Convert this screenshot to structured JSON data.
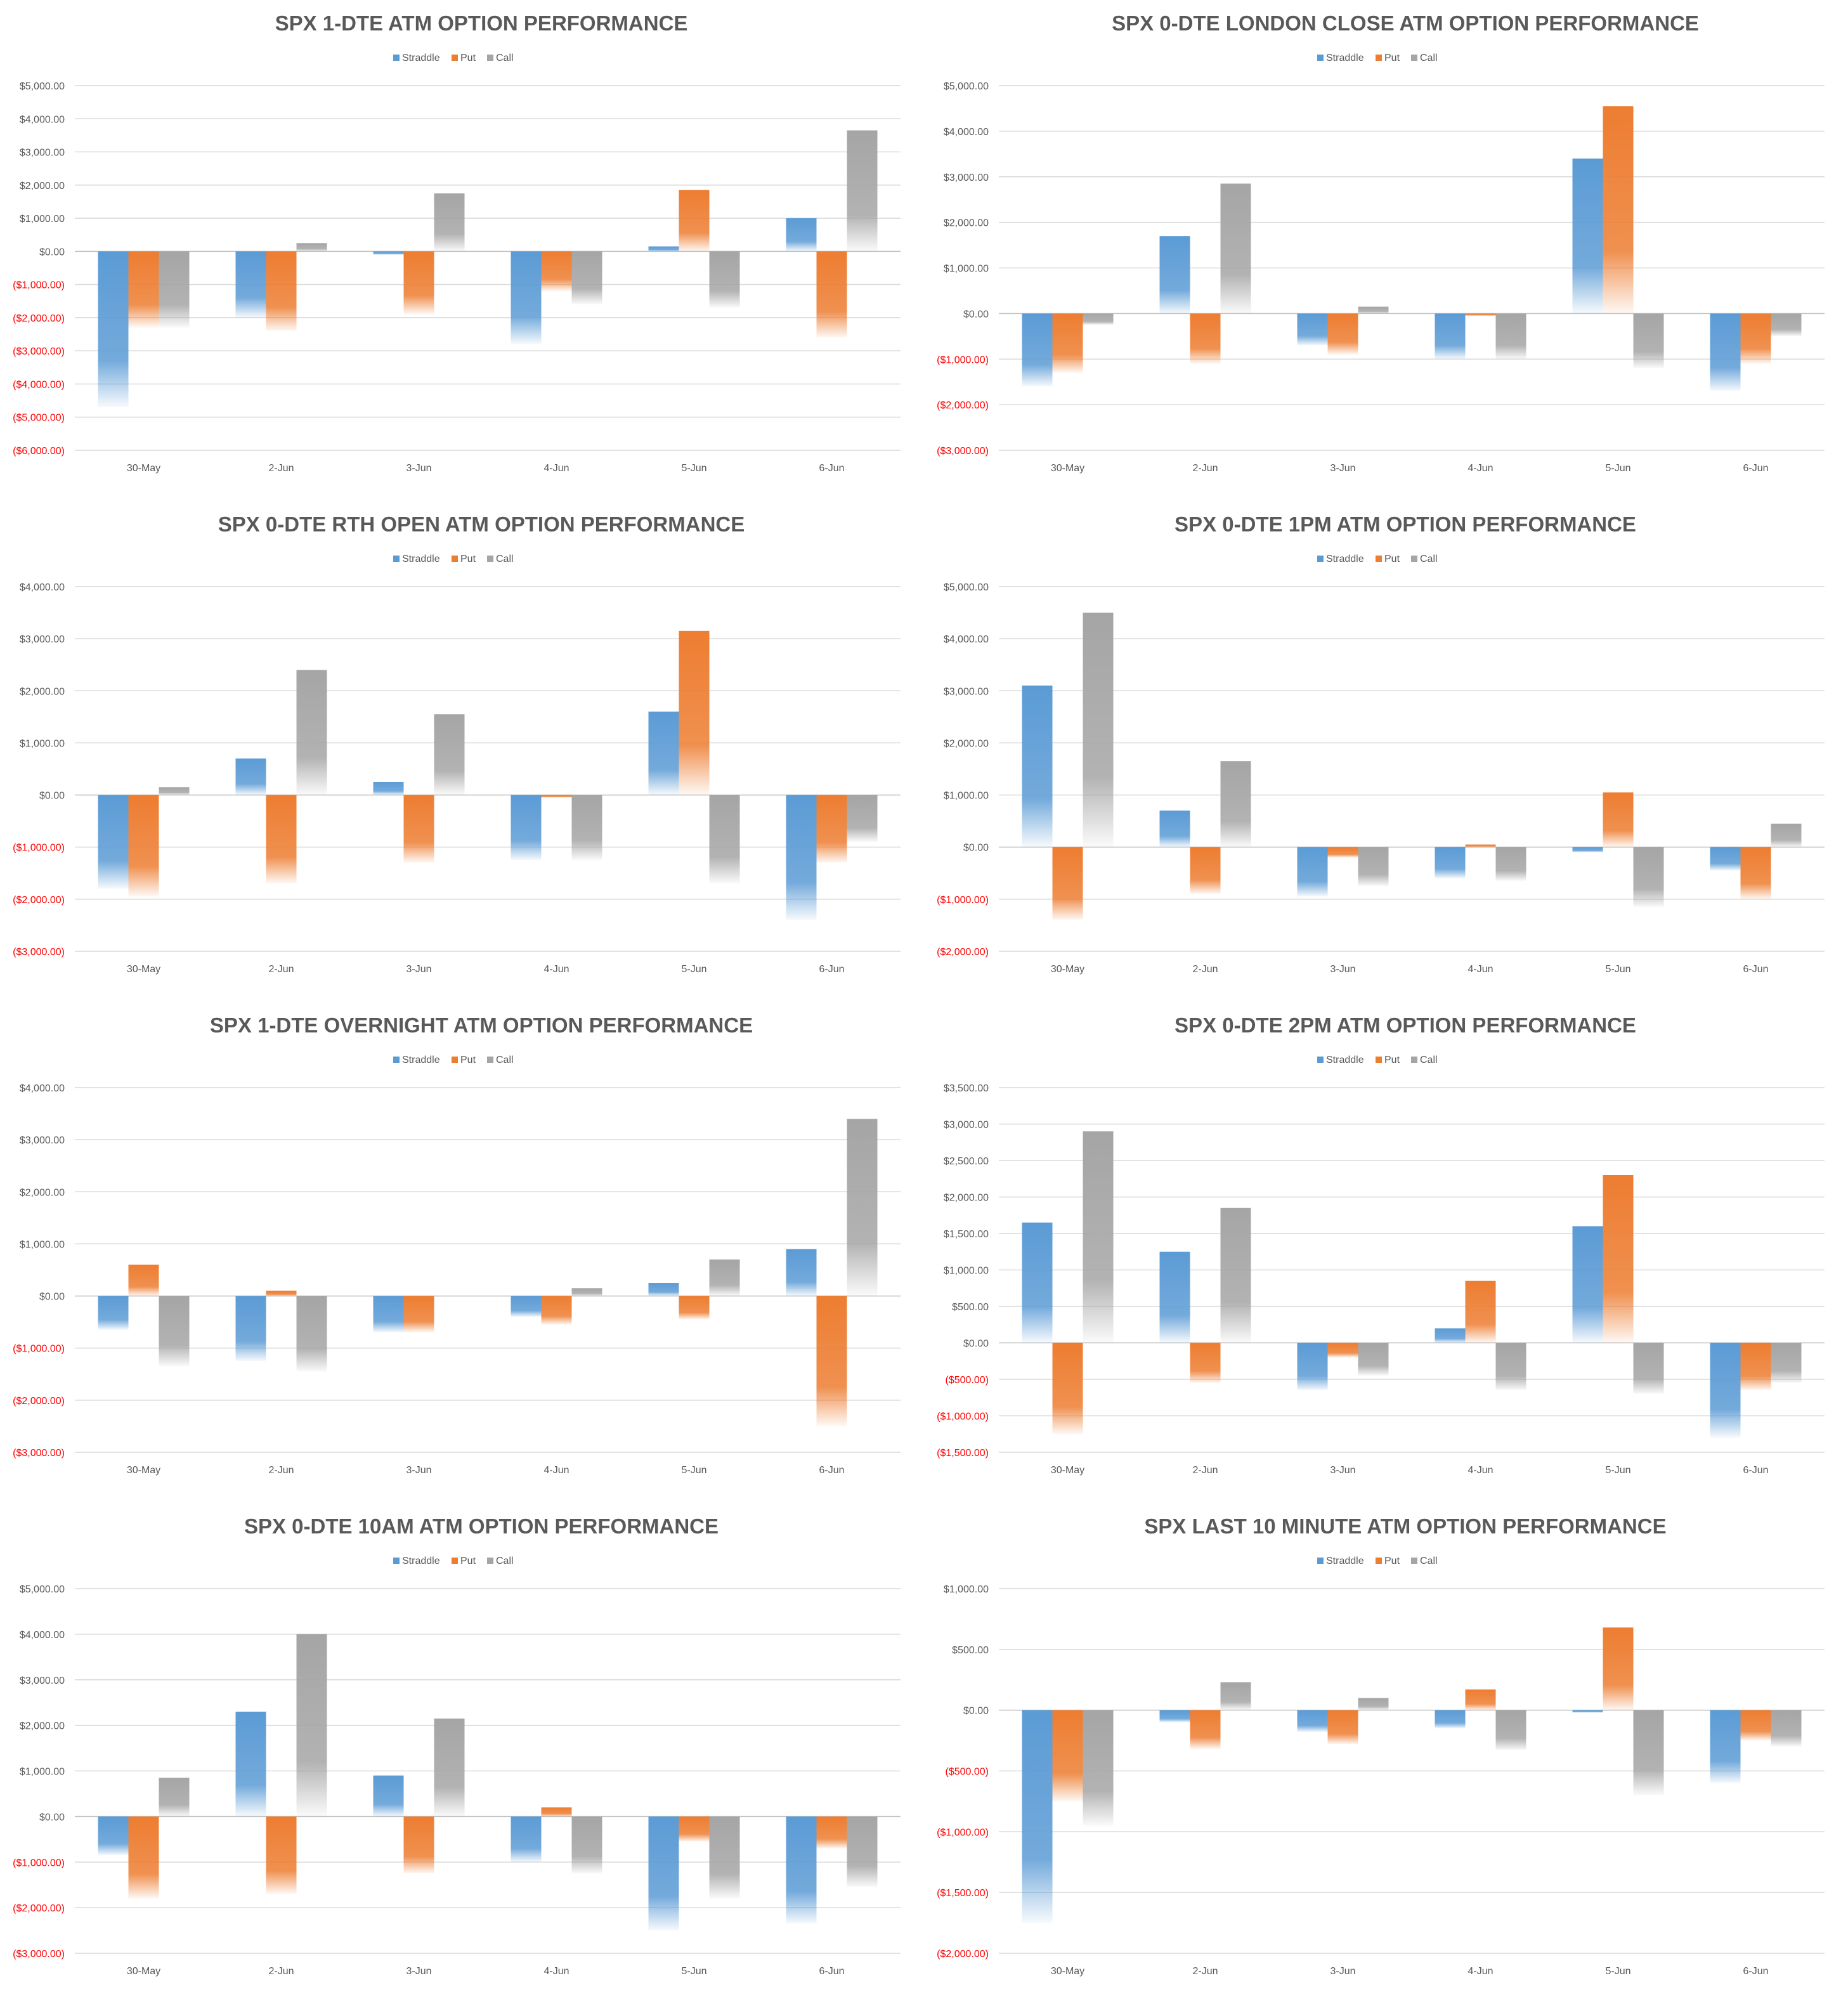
{
  "series_colors": {
    "Straddle": "#5b9bd5",
    "Put": "#ed7d31",
    "Call": "#a5a5a5"
  },
  "negative_label_color": "#ff0000",
  "chart_data": [
    {
      "type": "bar",
      "title": "SPX 1-DTE ATM OPTION PERFORMANCE",
      "categories": [
        "30-May",
        "2-Jun",
        "3-Jun",
        "4-Jun",
        "5-Jun",
        "6-Jun"
      ],
      "ylim": [
        -6000,
        5000
      ],
      "ytick_step": 1000,
      "yticks": [
        "$5,000.00",
        "$4,000.00",
        "$3,000.00",
        "$2,000.00",
        "$1,000.00",
        "$0.00",
        "($1,000.00)",
        "($2,000.00)",
        "($3,000.00)",
        "($4,000.00)",
        "($5,000.00)",
        "($6,000.00)"
      ],
      "legend": "top",
      "grid": true,
      "series": [
        {
          "name": "Straddle",
          "values": [
            -4700,
            -2000,
            -100,
            -2800,
            150,
            1000
          ]
        },
        {
          "name": "Put",
          "values": [
            -2300,
            -2400,
            -1900,
            -1200,
            1850,
            -2600
          ]
        },
        {
          "name": "Call",
          "values": [
            -2300,
            250,
            1750,
            -1600,
            -1700,
            3650
          ]
        }
      ]
    },
    {
      "type": "bar",
      "title": "SPX 0-DTE  LONDON CLOSE ATM OPTION PERFORMANCE",
      "categories": [
        "30-May",
        "2-Jun",
        "3-Jun",
        "4-Jun",
        "5-Jun",
        "6-Jun"
      ],
      "ylim": [
        -3000,
        5000
      ],
      "ytick_step": 1000,
      "yticks": [
        "$5,000.00",
        "$4,000.00",
        "$3,000.00",
        "$2,000.00",
        "$1,000.00",
        "$0.00",
        "($1,000.00)",
        "($2,000.00)",
        "($3,000.00)"
      ],
      "legend": "top",
      "grid": true,
      "series": [
        {
          "name": "Straddle",
          "values": [
            -1600,
            1700,
            -700,
            -1000,
            3400,
            -1700
          ]
        },
        {
          "name": "Put",
          "values": [
            -1300,
            -1100,
            -900,
            -50,
            4550,
            -1100
          ]
        },
        {
          "name": "Call",
          "values": [
            -250,
            2850,
            150,
            -1000,
            -1200,
            -500
          ]
        }
      ]
    },
    {
      "type": "bar",
      "title": "SPX 0-DTE RTH OPEN ATM OPTION PERFORMANCE",
      "categories": [
        "30-May",
        "2-Jun",
        "3-Jun",
        "4-Jun",
        "5-Jun",
        "6-Jun"
      ],
      "ylim": [
        -3000,
        4000
      ],
      "ytick_step": 1000,
      "yticks": [
        "$4,000.00",
        "$3,000.00",
        "$2,000.00",
        "$1,000.00",
        "$0.00",
        "($1,000.00)",
        "($2,000.00)",
        "($3,000.00)"
      ],
      "legend": "top",
      "grid": true,
      "series": [
        {
          "name": "Straddle",
          "values": [
            -1800,
            700,
            250,
            -1250,
            1600,
            -2400
          ]
        },
        {
          "name": "Put",
          "values": [
            -1950,
            -1700,
            -1300,
            -50,
            3150,
            -1300
          ]
        },
        {
          "name": "Call",
          "values": [
            150,
            2400,
            1550,
            -1250,
            -1700,
            -900
          ]
        }
      ]
    },
    {
      "type": "bar",
      "title": "SPX 0-DTE 1PM ATM OPTION PERFORMANCE",
      "categories": [
        "30-May",
        "2-Jun",
        "3-Jun",
        "4-Jun",
        "5-Jun",
        "6-Jun"
      ],
      "ylim": [
        -2000,
        5000
      ],
      "ytick_step": 1000,
      "yticks": [
        "$5,000.00",
        "$4,000.00",
        "$3,000.00",
        "$2,000.00",
        "$1,000.00",
        "$0.00",
        "($1,000.00)",
        "($2,000.00)"
      ],
      "legend": "top",
      "grid": true,
      "series": [
        {
          "name": "Straddle",
          "values": [
            3100,
            700,
            -950,
            -600,
            -100,
            -450
          ]
        },
        {
          "name": "Put",
          "values": [
            -1400,
            -900,
            -200,
            50,
            1050,
            -1000
          ]
        },
        {
          "name": "Call",
          "values": [
            4500,
            1650,
            -750,
            -650,
            -1150,
            450
          ]
        }
      ]
    },
    {
      "type": "bar",
      "title": "SPX 1-DTE OVERNIGHT ATM OPTION PERFORMANCE",
      "categories": [
        "30-May",
        "2-Jun",
        "3-Jun",
        "4-Jun",
        "5-Jun",
        "6-Jun"
      ],
      "ylim": [
        -3000,
        4000
      ],
      "ytick_step": 1000,
      "yticks": [
        "$4,000.00",
        "$3,000.00",
        "$2,000.00",
        "$1,000.00",
        "$0.00",
        "($1,000.00)",
        "($2,000.00)",
        "($3,000.00)"
      ],
      "legend": "top",
      "grid": true,
      "series": [
        {
          "name": "Straddle",
          "values": [
            -650,
            -1250,
            -700,
            -400,
            250,
            900
          ]
        },
        {
          "name": "Put",
          "values": [
            600,
            100,
            -700,
            -550,
            -450,
            -2500
          ]
        },
        {
          "name": "Call",
          "values": [
            -1350,
            -1450,
            0,
            150,
            700,
            3400
          ]
        }
      ]
    },
    {
      "type": "bar",
      "title": "SPX 0-DTE 2PM ATM OPTION PERFORMANCE",
      "categories": [
        "30-May",
        "2-Jun",
        "3-Jun",
        "4-Jun",
        "5-Jun",
        "6-Jun"
      ],
      "ylim": [
        -1500,
        3500
      ],
      "ytick_step": 500,
      "yticks": [
        "$3,500.00",
        "$3,000.00",
        "$2,500.00",
        "$2,000.00",
        "$1,500.00",
        "$1,000.00",
        "$500.00",
        "$0.00",
        "($500.00)",
        "($1,000.00)",
        "($1,500.00)"
      ],
      "legend": "top",
      "grid": true,
      "series": [
        {
          "name": "Straddle",
          "values": [
            1650,
            1250,
            -650,
            200,
            1600,
            -1300
          ]
        },
        {
          "name": "Put",
          "values": [
            -1250,
            -550,
            -200,
            850,
            2300,
            -650
          ]
        },
        {
          "name": "Call",
          "values": [
            2900,
            1850,
            -450,
            -650,
            -700,
            -550
          ]
        }
      ]
    },
    {
      "type": "bar",
      "title": "SPX 0-DTE 10AM ATM OPTION PERFORMANCE",
      "categories": [
        "30-May",
        "2-Jun",
        "3-Jun",
        "4-Jun",
        "5-Jun",
        "6-Jun"
      ],
      "ylim": [
        -3000,
        5000
      ],
      "ytick_step": 1000,
      "yticks": [
        "$5,000.00",
        "$4,000.00",
        "$3,000.00",
        "$2,000.00",
        "$1,000.00",
        "$0.00",
        "($1,000.00)",
        "($2,000.00)",
        "($3,000.00)"
      ],
      "legend": "top",
      "grid": true,
      "series": [
        {
          "name": "Straddle",
          "values": [
            -850,
            2300,
            900,
            -1000,
            -2500,
            -2350
          ]
        },
        {
          "name": "Put",
          "values": [
            -1800,
            -1700,
            -1250,
            200,
            -550,
            -700
          ]
        },
        {
          "name": "Call",
          "values": [
            850,
            4000,
            2150,
            -1250,
            -1800,
            -1550
          ]
        }
      ]
    },
    {
      "type": "bar",
      "title": "SPX LAST 10 MINUTE ATM OPTION PERFORMANCE",
      "categories": [
        "30-May",
        "2-Jun",
        "3-Jun",
        "4-Jun",
        "5-Jun",
        "6-Jun"
      ],
      "ylim": [
        -2000,
        1000
      ],
      "ytick_step": 500,
      "yticks": [
        "$1,000.00",
        "$500.00",
        "$0.00",
        "($500.00)",
        "($1,000.00)",
        "($1,500.00)",
        "($2,000.00)"
      ],
      "legend": "top",
      "grid": true,
      "series": [
        {
          "name": "Straddle",
          "values": [
            -1750,
            -100,
            -180,
            -150,
            -20,
            -600
          ]
        },
        {
          "name": "Put",
          "values": [
            -750,
            -320,
            -280,
            170,
            680,
            -250
          ]
        },
        {
          "name": "Call",
          "values": [
            -950,
            230,
            100,
            -330,
            -700,
            -300
          ]
        }
      ]
    }
  ]
}
